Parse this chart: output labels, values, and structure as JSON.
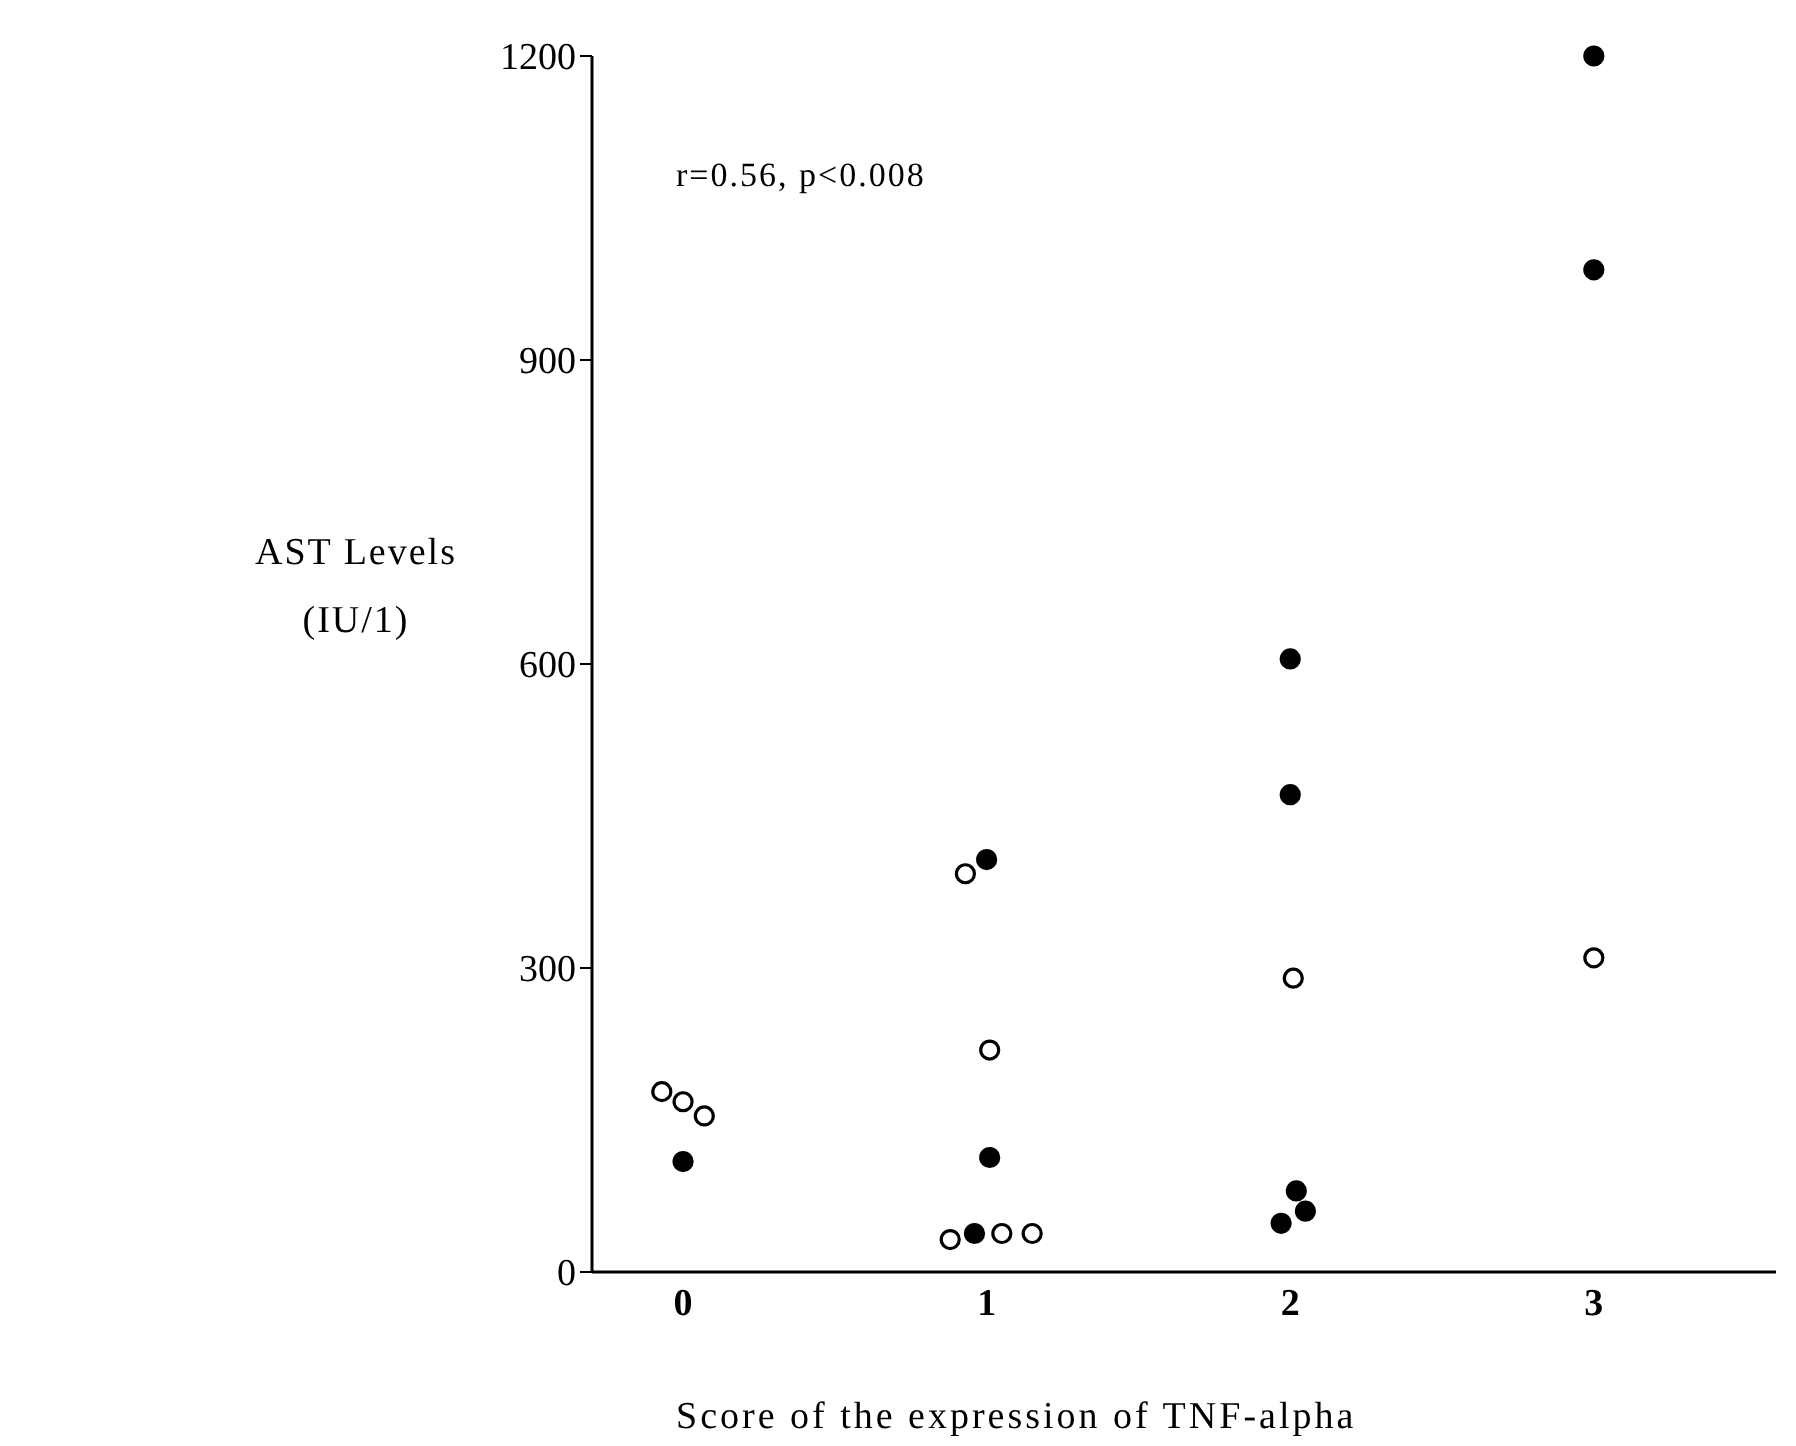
{
  "chart_data": {
    "type": "scatter",
    "xlabel": "Score of the expression of TNF-alpha",
    "ylabel": "AST Levels (IU/1)",
    "annotations": [
      "r=0.56, p<0.008"
    ],
    "xlim": [
      -0.3,
      3.6
    ],
    "xticks": [
      0,
      1,
      2,
      3
    ],
    "ylim": [
      0,
      1200
    ],
    "yticks": [
      0,
      300,
      600,
      900,
      1200
    ],
    "grid": false,
    "legend": false,
    "marker": "circle",
    "series": [
      {
        "color": "#ffffff",
        "x": [
          -0.07,
          0,
          0.07,
          0.93,
          1.01,
          0.88,
          1.05,
          1.15,
          2.01,
          3.0
        ],
        "values": [
          178,
          168,
          154,
          393,
          219,
          32,
          38,
          38,
          290,
          310
        ]
      },
      {
        "color": "#000000",
        "x": [
          0,
          1.0,
          1.01,
          0.96,
          2.0,
          2.0,
          2.02,
          2.05,
          1.97,
          3.0,
          3.0
        ],
        "values": [
          109,
          407,
          113,
          38,
          605,
          471,
          80,
          60,
          48,
          1200,
          989
        ]
      }
    ]
  }
}
